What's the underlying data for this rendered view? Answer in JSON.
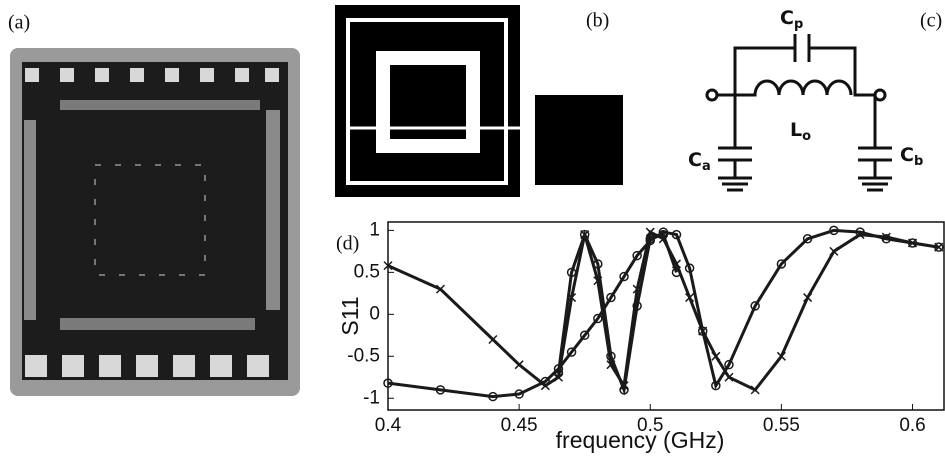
{
  "panels": {
    "a": "(a)",
    "b": "(b)",
    "c": "(c)",
    "d": "(d)"
  },
  "circuit": {
    "cp": {
      "symbol": "C",
      "subscript": "p"
    },
    "lo": {
      "symbol": "L",
      "subscript": "o"
    },
    "ca": {
      "symbol": "C",
      "subscript": "a"
    },
    "cb": {
      "symbol": "C",
      "subscript": "b"
    }
  },
  "chart_data": {
    "type": "line",
    "xlabel": "frequency (GHz)",
    "ylabel": "S11",
    "x": [
      0.4,
      0.42,
      0.44,
      0.45,
      0.46,
      0.465,
      0.47,
      0.475,
      0.48,
      0.485,
      0.49,
      0.495,
      0.5,
      0.505,
      0.51,
      0.515,
      0.52,
      0.525,
      0.53,
      0.54,
      0.55,
      0.56,
      0.57,
      0.58,
      0.59,
      0.6,
      0.61
    ],
    "series": [
      {
        "color": "#1a1a1a",
        "marker": "o",
        "values": [
          -0.82,
          -0.9,
          -0.98,
          -0.95,
          -0.8,
          -0.65,
          -0.45,
          -0.25,
          -0.05,
          0.2,
          0.45,
          0.7,
          0.88,
          0.98,
          0.95,
          0.55,
          -0.2,
          -0.85,
          -0.6,
          0.1,
          0.6,
          0.9,
          1,
          0.98,
          0.9,
          0.85,
          0.8
        ]
      },
      {
        "color": "#1a1a1a",
        "marker": "x",
        "values": [
          0.58,
          0.3,
          -0.3,
          -0.6,
          -0.85,
          -0.75,
          0.2,
          0.95,
          0.4,
          -0.6,
          -0.85,
          0.3,
          0.98,
          0.9,
          0.6,
          0.2,
          -0.2,
          -0.5,
          -0.75,
          -0.9,
          -0.5,
          0.2,
          0.75,
          0.95,
          0.92,
          0.85,
          0.8
        ]
      },
      {
        "color": "#1a1a1a",
        "marker": "o",
        "values": [
          null,
          null,
          null,
          null,
          null,
          -0.7,
          0.5,
          0.95,
          0.6,
          -0.5,
          -0.9,
          0.1,
          0.9,
          0.95,
          0.5,
          null,
          null,
          null,
          null,
          null,
          null,
          null,
          null,
          null,
          null,
          null,
          null
        ]
      }
    ],
    "xlim": [
      0.4,
      0.612
    ],
    "ylim": [
      -1.14,
      1.1
    ],
    "xticks": [
      0.4,
      0.45,
      0.5,
      0.55,
      0.6
    ],
    "yticks": [
      1,
      0.5,
      0,
      -0.5,
      -1
    ]
  }
}
